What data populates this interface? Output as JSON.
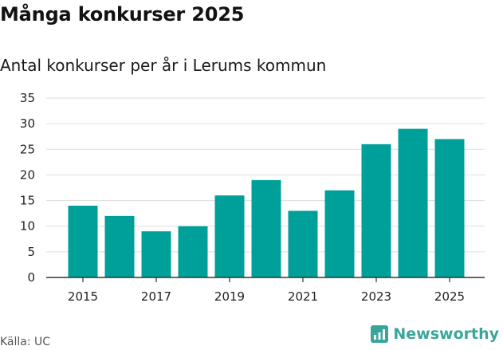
{
  "header": {
    "title": "Många konkurser 2025",
    "subtitle": "Antal konkurser per år i Lerums kommun"
  },
  "footer": {
    "source": "Källa: UC",
    "brand": "Newsworthy"
  },
  "colors": {
    "bar": "#00a09a",
    "grid": "#dddddd",
    "axis": "#333333",
    "brand": "#3aa69b"
  },
  "chart_data": {
    "type": "bar",
    "title": "Många konkurser 2025",
    "subtitle": "Antal konkurser per år i Lerums kommun",
    "xlabel": "",
    "ylabel": "",
    "categories": [
      "2015",
      "2016",
      "2017",
      "2018",
      "2019",
      "2020",
      "2021",
      "2022",
      "2023",
      "2024",
      "2025"
    ],
    "values": [
      14,
      12,
      9,
      10,
      16,
      19,
      13,
      17,
      26,
      29,
      27
    ],
    "x_tick_labels": [
      "2015",
      "2017",
      "2019",
      "2021",
      "2023",
      "2025"
    ],
    "y_ticks": [
      0,
      5,
      10,
      15,
      20,
      25,
      30,
      35
    ],
    "ylim": [
      0,
      35
    ],
    "grid": true,
    "legend": "none"
  }
}
